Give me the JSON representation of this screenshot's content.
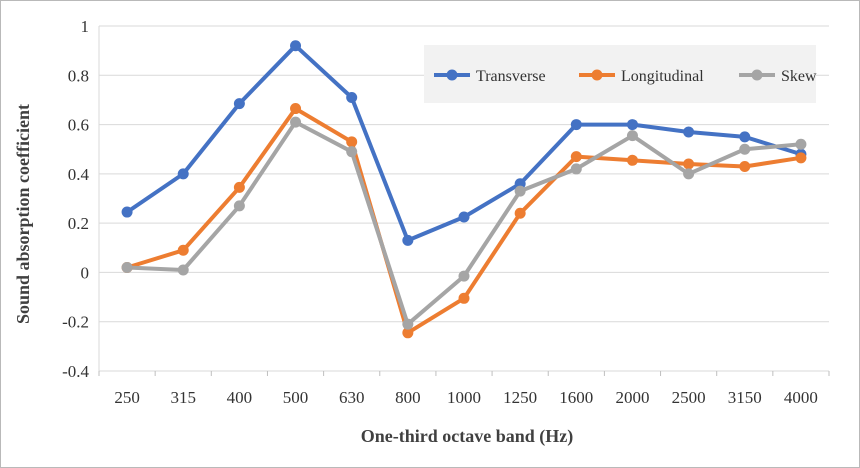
{
  "chart_data": {
    "type": "line",
    "title": "",
    "xlabel": "One-third octave band (Hz)",
    "ylabel": "Sound  absorption coefficient",
    "categories": [
      "250",
      "315",
      "400",
      "500",
      "630",
      "800",
      "1000",
      "1250",
      "1600",
      "2000",
      "2500",
      "3150",
      "4000"
    ],
    "ylim": [
      -0.4,
      1
    ],
    "yticks": [
      -0.4,
      -0.2,
      0,
      0.2,
      0.4,
      0.6,
      0.8,
      1
    ],
    "ytick_labels": [
      "-0.4",
      "-0.2",
      "0",
      "0.2",
      "0.4",
      "0.6",
      "0.8",
      "1"
    ],
    "grid": "horizontal",
    "legend_position": "top-right",
    "series": [
      {
        "name": "Transverse",
        "color": "#4472C4",
        "values": [
          0.245,
          0.4,
          0.685,
          0.92,
          0.71,
          0.13,
          0.225,
          0.36,
          0.6,
          0.6,
          0.57,
          0.55,
          0.48
        ]
      },
      {
        "name": "Longitudinal",
        "color": "#ED7D31",
        "values": [
          0.02,
          0.09,
          0.345,
          0.665,
          0.53,
          -0.245,
          -0.105,
          0.24,
          0.47,
          0.455,
          0.44,
          0.43,
          0.465
        ]
      },
      {
        "name": "Skew",
        "color": "#A5A5A5",
        "values": [
          0.02,
          0.01,
          0.27,
          0.61,
          0.49,
          -0.21,
          -0.015,
          0.33,
          0.42,
          0.555,
          0.4,
          0.5,
          0.52
        ]
      }
    ]
  }
}
